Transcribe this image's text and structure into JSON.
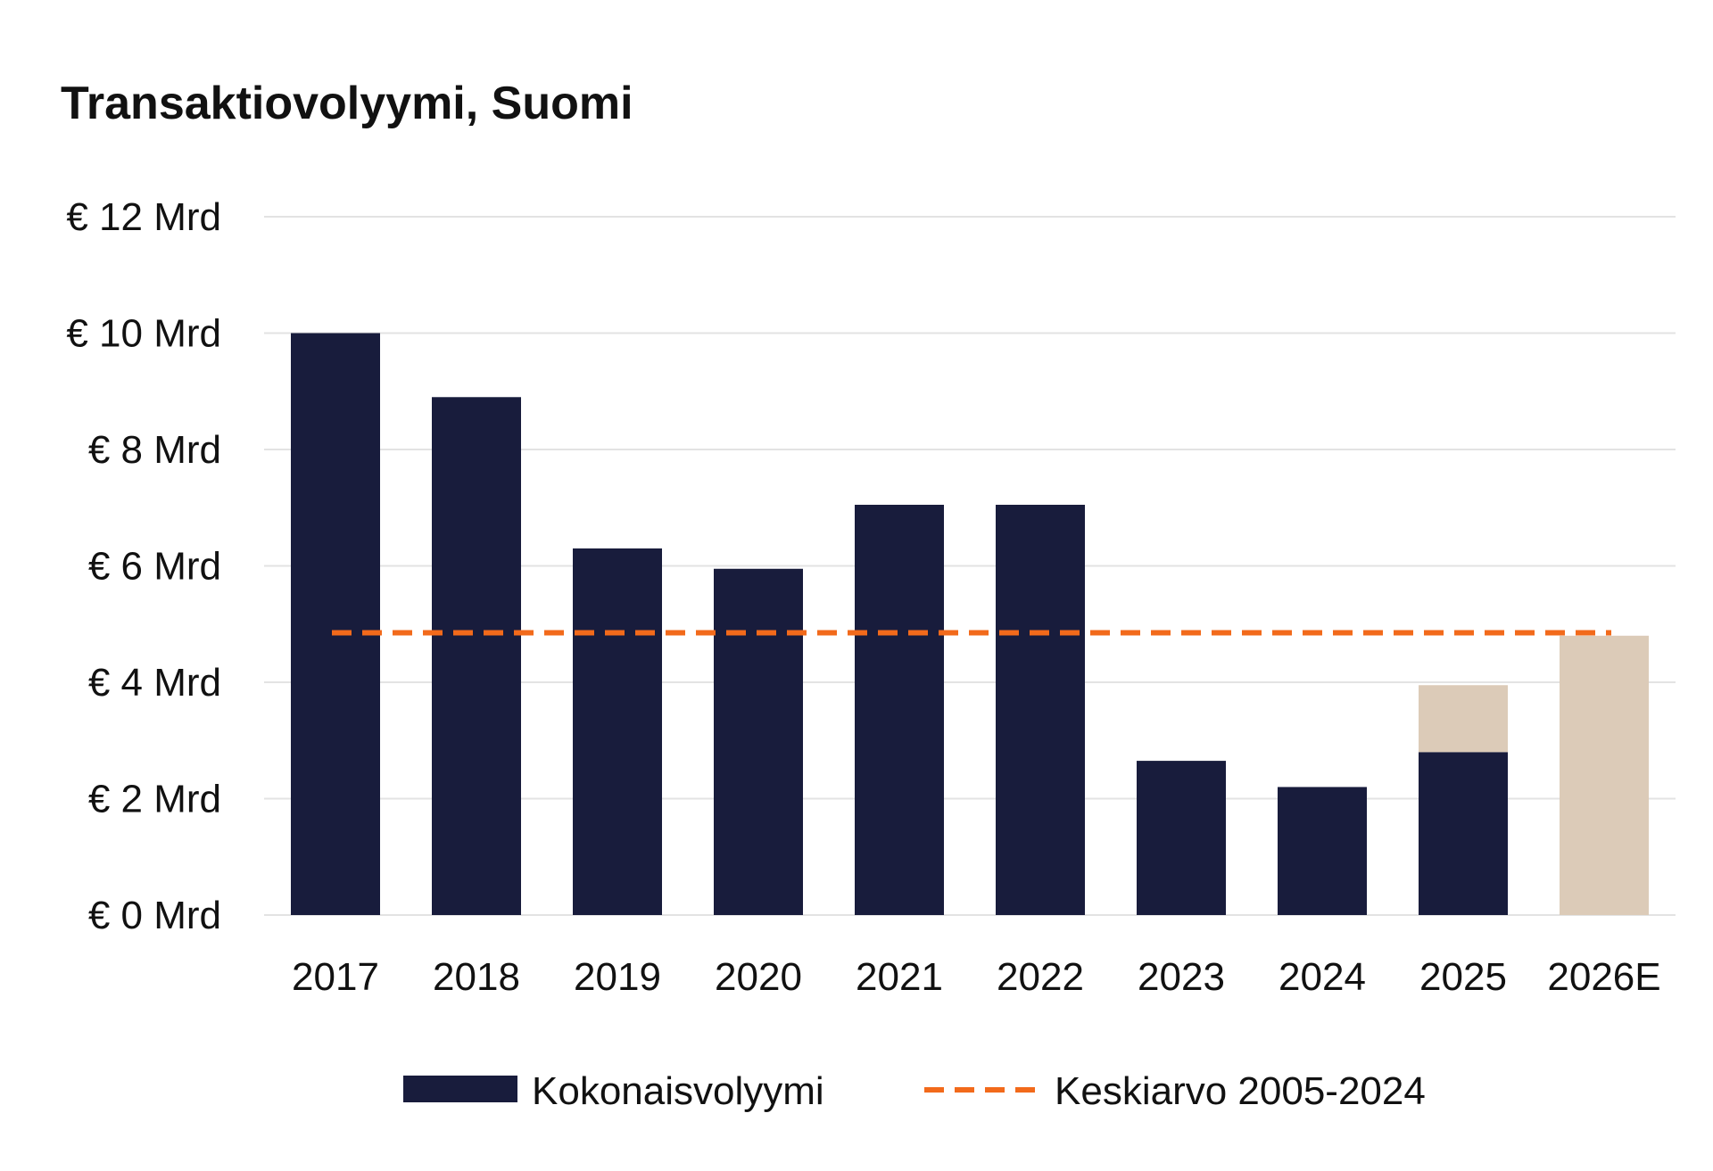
{
  "chart_data": {
    "type": "bar",
    "title": "Transaktiovolyymi, Suomi",
    "categories": [
      "2017",
      "2018",
      "2019",
      "2020",
      "2021",
      "2022",
      "2023",
      "2024",
      "2025",
      "2026E"
    ],
    "series": [
      {
        "name": "Kokonaisvolyymi",
        "color": "#181c3c",
        "values": [
          10.0,
          8.9,
          6.3,
          5.95,
          7.05,
          7.05,
          2.65,
          2.2,
          2.8,
          0
        ]
      },
      {
        "color": "#dccbb8",
        "values": [
          0,
          0,
          0,
          0,
          0,
          0,
          0,
          0,
          1.15,
          4.8
        ]
      }
    ],
    "reference_line": {
      "name": "Keskiarvo 2005-2024",
      "value": 4.85,
      "color": "#f26a1b",
      "style": "dashed"
    },
    "y_ticks": [
      {
        "value": 0,
        "label": "€ 0 Mrd"
      },
      {
        "value": 2,
        "label": "€ 2 Mrd"
      },
      {
        "value": 4,
        "label": "€ 4 Mrd"
      },
      {
        "value": 6,
        "label": "€ 6 Mrd"
      },
      {
        "value": 8,
        "label": "€ 8 Mrd"
      },
      {
        "value": 10,
        "label": "€ 10 Mrd"
      },
      {
        "value": 12,
        "label": "€ 12 Mrd"
      }
    ],
    "ylim": [
      0,
      12
    ],
    "xlabel": "",
    "ylabel": "",
    "grid": true,
    "stacked": true,
    "legend_position": "bottom"
  }
}
